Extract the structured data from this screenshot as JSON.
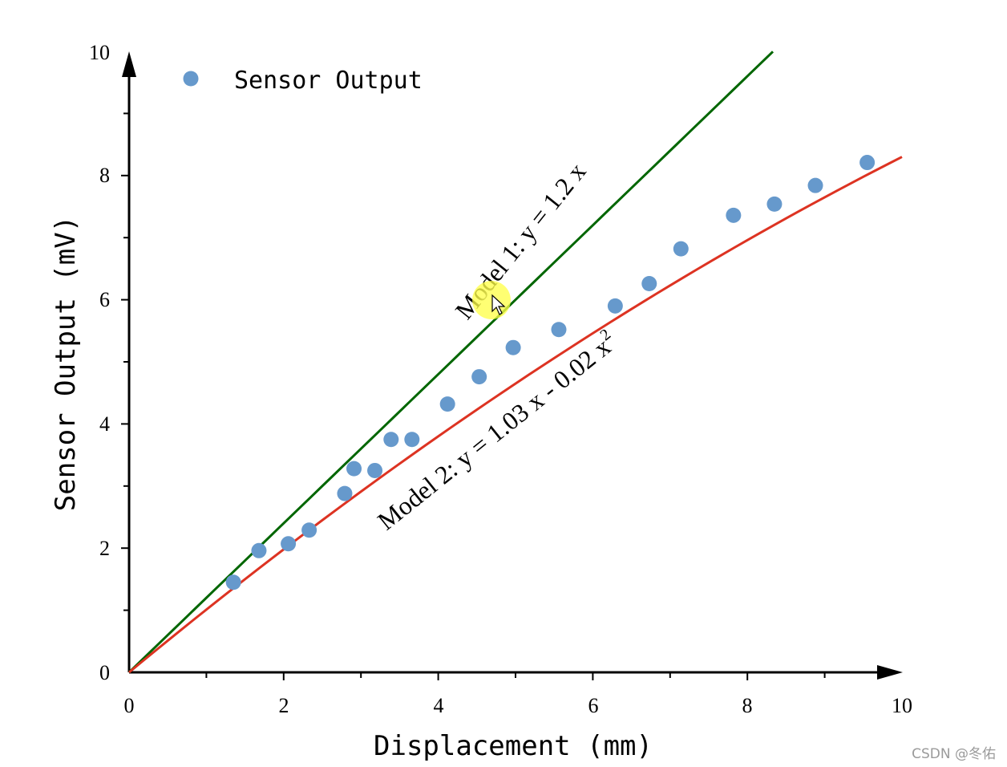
{
  "chart_data": {
    "type": "scatter",
    "title": "",
    "xlabel": "Displacement (mm)",
    "ylabel": "Sensor Output (mV)",
    "xlim": [
      0,
      10
    ],
    "ylim": [
      0,
      10
    ],
    "xticks": [
      "0",
      "2",
      "4",
      "6",
      "8",
      "10"
    ],
    "yticks": [
      "0",
      "2",
      "4",
      "6",
      "8",
      "10"
    ],
    "grid": false,
    "legend": {
      "position": "top-left",
      "entries": [
        "Sensor Output"
      ]
    },
    "series": [
      {
        "name": "Sensor Output",
        "kind": "scatter",
        "color": "#6699cc",
        "x": [
          1.35,
          1.68,
          2.06,
          2.33,
          2.79,
          2.91,
          3.18,
          3.39,
          3.66,
          4.12,
          4.53,
          4.97,
          5.56,
          6.29,
          6.73,
          7.14,
          7.82,
          8.35,
          8.88,
          9.55
        ],
        "y": [
          1.45,
          1.96,
          2.07,
          2.29,
          2.88,
          3.28,
          3.25,
          3.75,
          3.75,
          4.32,
          4.76,
          5.23,
          5.52,
          5.9,
          6.26,
          6.82,
          7.36,
          7.54,
          7.84,
          8.21
        ]
      },
      {
        "name": "Model 1",
        "kind": "line",
        "color": "#006600",
        "equation": "y = 1.2 x",
        "coefficients": {
          "a1": 1.2,
          "a2": 0
        },
        "x_range": [
          0,
          8.33
        ]
      },
      {
        "name": "Model 2",
        "kind": "line",
        "color": "#dd3322",
        "equation": "y = 1.03 x - 0.02 x^2",
        "coefficients": {
          "a1": 1.03,
          "a2": -0.02
        },
        "x_range": [
          0,
          10
        ]
      }
    ],
    "annotations": {
      "model1": "Model 1: y = 1.2 x",
      "model2_main": "Model 2: y = 1.03 x - 0.02 x",
      "model2_sup": "2"
    }
  },
  "watermark": "CSDN @冬佑"
}
